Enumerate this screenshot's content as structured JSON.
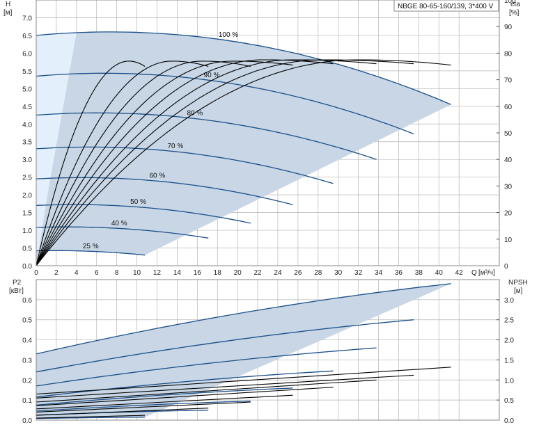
{
  "model": "NBGE 80-65-160/139, 3*400 V",
  "colors": {
    "curve": "#1a4f8a",
    "eta": "#000000",
    "band": "#c8d6e5",
    "band_light": "#e3effa",
    "grid": "#b5b5b5"
  },
  "chart_data": [
    {
      "type": "line",
      "title": "",
      "x_label": "Q",
      "x_unit": "[м³/ч]",
      "y_label": "H",
      "y_unit": "[м]",
      "y2_label": "eta",
      "y2_unit": "[%]",
      "xlim": [
        0,
        46
      ],
      "ylim": [
        0,
        7.5
      ],
      "y2lim": [
        0,
        100
      ],
      "x_ticks": [
        "0",
        "2",
        "4",
        "6",
        "8",
        "10",
        "12",
        "14",
        "16",
        "18",
        "20",
        "22",
        "24",
        "26",
        "28",
        "30",
        "32",
        "34",
        "36",
        "38",
        "40",
        "42"
      ],
      "y_ticks": [
        "0.0",
        "0.5",
        "1.0",
        "1.5",
        "2.0",
        "2.5",
        "3.0",
        "3.5",
        "4.0",
        "4.5",
        "5.0",
        "5.5",
        "6.0",
        "6.5",
        "7.0"
      ],
      "y2_ticks": [
        "0",
        "10",
        "20",
        "30",
        "40",
        "50",
        "60",
        "70",
        "80",
        "90",
        "100"
      ],
      "grid": true,
      "head_curves": [
        {
          "speed": "100 %",
          "H0": 6.5,
          "Qmax": 41.2,
          "Hend": 4.55
        },
        {
          "speed": "90 %",
          "H0": 5.35,
          "Qmax": 37.5,
          "Hend": 3.72
        },
        {
          "speed": "80 %",
          "H0": 4.25,
          "Qmax": 33.8,
          "Hend": 3.0
        },
        {
          "speed": "70 %",
          "H0": 3.3,
          "Qmax": 29.5,
          "Hend": 2.32
        },
        {
          "speed": "60 %",
          "H0": 2.45,
          "Qmax": 25.5,
          "Hend": 1.72
        },
        {
          "speed": "50 %",
          "H0": 1.7,
          "Qmax": 21.3,
          "Hend": 1.2
        },
        {
          "speed": "40 %",
          "H0": 1.08,
          "Qmax": 17.1,
          "Hend": 0.78
        },
        {
          "speed": "25 %",
          "H0": 0.42,
          "Qmax": 10.8,
          "Hend": 0.3
        }
      ],
      "eta_curves": [
        {
          "Qpeak": 9.2,
          "eta_peak": 77,
          "Qend": 10.8,
          "eta_end": 75
        },
        {
          "Qpeak": 13.5,
          "eta_peak": 77,
          "Qend": 17.1,
          "eta_end": 75
        },
        {
          "Qpeak": 16.5,
          "eta_peak": 77,
          "Qend": 21.3,
          "eta_end": 75
        },
        {
          "Qpeak": 19.5,
          "eta_peak": 77,
          "Qend": 25.5,
          "eta_end": 75.5
        },
        {
          "Qpeak": 22.5,
          "eta_peak": 77.5,
          "Qend": 29.5,
          "eta_end": 76
        },
        {
          "Qpeak": 25.5,
          "eta_peak": 77.5,
          "Qend": 33.8,
          "eta_end": 76
        },
        {
          "Qpeak": 28.5,
          "eta_peak": 77.5,
          "Qend": 37.5,
          "eta_end": 76
        },
        {
          "Qpeak": 32,
          "eta_peak": 77.5,
          "Qend": 41.2,
          "eta_end": 75.5
        }
      ]
    },
    {
      "type": "line",
      "title": "",
      "y_label": "P2",
      "y_unit": "[кВт]",
      "y2_label": "NPSH",
      "y2_unit": "[м]",
      "xlim": [
        0,
        46
      ],
      "ylim": [
        0,
        0.7
      ],
      "y2lim": [
        0,
        3.5
      ],
      "y_ticks": [
        "0.0",
        "0.1",
        "0.2",
        "0.3",
        "0.4",
        "0.5",
        "0.6"
      ],
      "y2_ticks": [
        "0.0",
        "0.5",
        "1.0",
        "1.5",
        "2.0",
        "2.5",
        "3.0"
      ],
      "grid": true,
      "power_curves": [
        {
          "speed": "100 %",
          "P0": 0.33,
          "Qmax": 41.2,
          "Pend": 0.68
        },
        {
          "speed": "90 %",
          "P0": 0.24,
          "Qmax": 37.5,
          "Pend": 0.5
        },
        {
          "speed": "80 %",
          "P0": 0.17,
          "Qmax": 33.8,
          "Pend": 0.36
        },
        {
          "speed": "70 %",
          "P0": 0.115,
          "Qmax": 29.5,
          "Pend": 0.245
        },
        {
          "speed": "60 %",
          "P0": 0.075,
          "Qmax": 25.5,
          "Pend": 0.16
        },
        {
          "speed": "50 %",
          "P0": 0.045,
          "Qmax": 21.3,
          "Pend": 0.095
        },
        {
          "speed": "40 %",
          "P0": 0.025,
          "Qmax": 17.1,
          "Pend": 0.05
        },
        {
          "speed": "25 %",
          "P0": 0.008,
          "Qmax": 10.8,
          "Pend": 0.015
        }
      ],
      "npsh_curves": [
        {
          "Q0": 0,
          "N0": 0.05,
          "Qend": 10.8,
          "Nend": 0.12
        },
        {
          "Q0": 0,
          "N0": 0.12,
          "Qend": 17.1,
          "Nend": 0.3
        },
        {
          "Q0": 0,
          "N0": 0.2,
          "Qend": 21.3,
          "Nend": 0.45
        },
        {
          "Q0": 0,
          "N0": 0.28,
          "Qend": 25.5,
          "Nend": 0.62
        },
        {
          "Q0": 0,
          "N0": 0.36,
          "Qend": 29.5,
          "Nend": 0.82
        },
        {
          "Q0": 0,
          "N0": 0.45,
          "Qend": 33.8,
          "Nend": 1.0
        },
        {
          "Q0": 0,
          "N0": 0.55,
          "Qend": 37.5,
          "Nend": 1.12
        },
        {
          "Q0": 0,
          "N0": 0.65,
          "Qend": 41.2,
          "Nend": 1.32
        }
      ]
    }
  ]
}
